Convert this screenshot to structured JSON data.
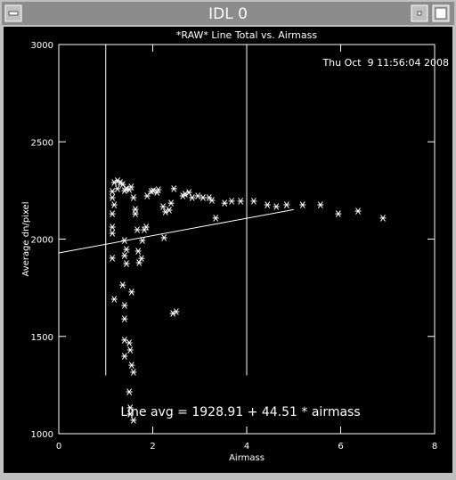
{
  "window": {
    "title": "IDL 0"
  },
  "chart_data": {
    "type": "scatter",
    "title": "*RAW* Line Total vs. Airmass",
    "annotations": [
      "Thu Oct  9 11:56:04 2008",
      "Line avg = 1928.91 + 44.51 * airmass"
    ],
    "xlabel": "Airmass",
    "ylabel": "Average dn/pixel",
    "xlim": [
      0,
      8
    ],
    "xticks": [
      0,
      2,
      4,
      6,
      8
    ],
    "ylim": [
      1000,
      3000
    ],
    "yticks": [
      1000,
      1500,
      2000,
      2500,
      3000
    ],
    "color": "#ffffff",
    "x": [
      1.18,
      1.25,
      1.31,
      1.36,
      1.14,
      1.14,
      1.18,
      1.14,
      1.14,
      1.14,
      1.14,
      1.18,
      1.25,
      1.4,
      1.44,
      1.5,
      1.54,
      1.59,
      1.63,
      1.67,
      1.4,
      1.44,
      1.4,
      1.44,
      1.36,
      1.4,
      1.4,
      1.4,
      1.5,
      1.52,
      1.4,
      1.55,
      1.59,
      1.5,
      1.52,
      1.59,
      1.52,
      1.55,
      1.63,
      1.69,
      1.71,
      1.76,
      1.78,
      1.82,
      1.86,
      1.88,
      1.97,
      2.01,
      2.09,
      2.12,
      2.22,
      2.27,
      2.39,
      2.45,
      2.35,
      2.24,
      2.64,
      2.69,
      2.77,
      2.84,
      2.96,
      3.07,
      3.2,
      3.26,
      3.34,
      3.53,
      3.68,
      3.87,
      4.15,
      4.44,
      4.63,
      4.85,
      5.19,
      5.57,
      5.95,
      6.37,
      6.9,
      2.43,
      2.5
    ],
    "values": [
      2291,
      2300,
      2291,
      2281,
      2245,
      2213,
      2176,
      2130,
      2062,
      2030,
      1902,
      1691,
      2259,
      2249,
      2259,
      2254,
      2268,
      2213,
      2153,
      2048,
      1993,
      1947,
      1915,
      1874,
      1764,
      1659,
      1590,
      1481,
      1467,
      1430,
      1398,
      1352,
      1316,
      1215,
      1133,
      1069,
      1101,
      1728,
      2130,
      1938,
      1879,
      1901,
      1993,
      2048,
      2062,
      2222,
      2245,
      2249,
      2240,
      2254,
      2167,
      2140,
      2185,
      2259,
      2149,
      2007,
      2222,
      2231,
      2240,
      2213,
      2222,
      2213,
      2213,
      2199,
      2108,
      2185,
      2195,
      2195,
      2195,
      2176,
      2167,
      2176,
      2176,
      2176,
      2130,
      2144,
      2108,
      1618,
      1627
    ],
    "fit": {
      "x": [
        0,
        5
      ],
      "values": [
        1928.91,
        2151.46
      ]
    },
    "vlines": [
      {
        "x": 1,
        "ylim": [
          1300,
          3000
        ]
      },
      {
        "x": 4,
        "ylim": [
          1300,
          3000
        ]
      }
    ]
  }
}
